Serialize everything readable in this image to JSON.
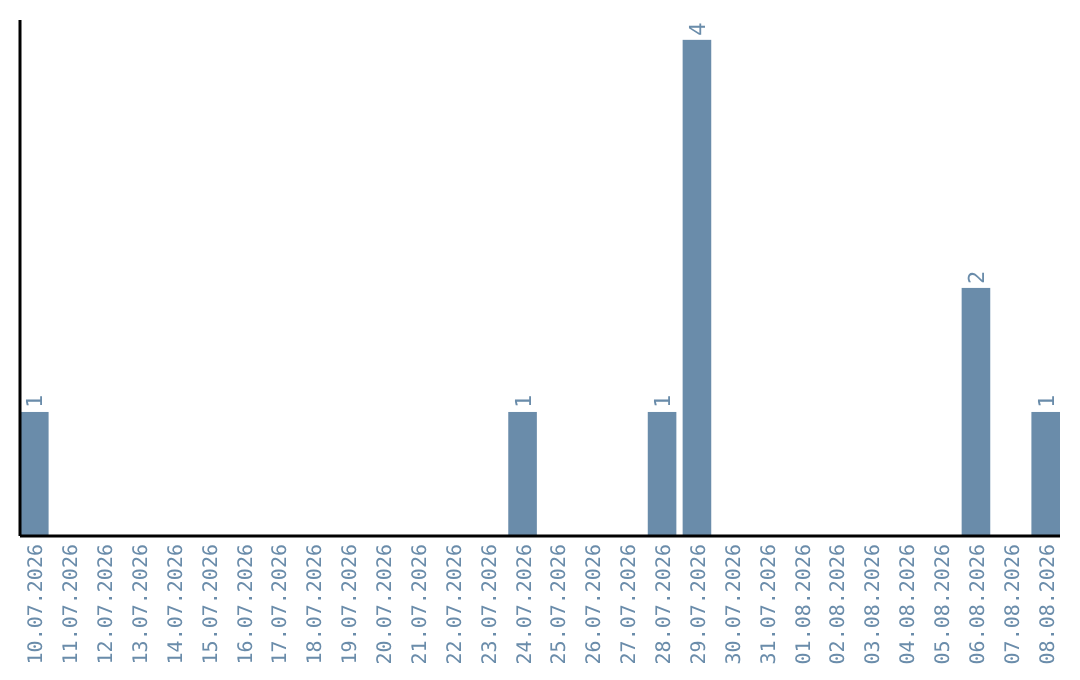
{
  "chart_data": {
    "type": "bar",
    "categories": [
      "10.07.2026",
      "11.07.2026",
      "12.07.2026",
      "13.07.2026",
      "14.07.2026",
      "15.07.2026",
      "16.07.2026",
      "17.07.2026",
      "18.07.2026",
      "19.07.2026",
      "20.07.2026",
      "21.07.2026",
      "22.07.2026",
      "23.07.2026",
      "24.07.2026",
      "25.07.2026",
      "26.07.2026",
      "27.07.2026",
      "28.07.2026",
      "29.07.2026",
      "30.07.2026",
      "31.07.2026",
      "01.08.2026",
      "02.08.2026",
      "03.08.2026",
      "04.08.2026",
      "05.08.2026",
      "06.08.2026",
      "07.08.2026",
      "08.08.2026"
    ],
    "values": [
      1,
      0,
      0,
      0,
      0,
      0,
      0,
      0,
      0,
      0,
      0,
      0,
      0,
      0,
      1,
      0,
      0,
      0,
      1,
      4,
      0,
      0,
      0,
      0,
      0,
      0,
      0,
      2,
      0,
      1
    ],
    "value_labels": [
      "1",
      null,
      null,
      null,
      null,
      null,
      null,
      null,
      null,
      null,
      null,
      null,
      null,
      null,
      "1",
      null,
      null,
      null,
      "1",
      "4",
      null,
      null,
      null,
      null,
      null,
      null,
      null,
      "2",
      null,
      "1"
    ],
    "color": "#6a8caa",
    "tick_labels": "x"
  }
}
